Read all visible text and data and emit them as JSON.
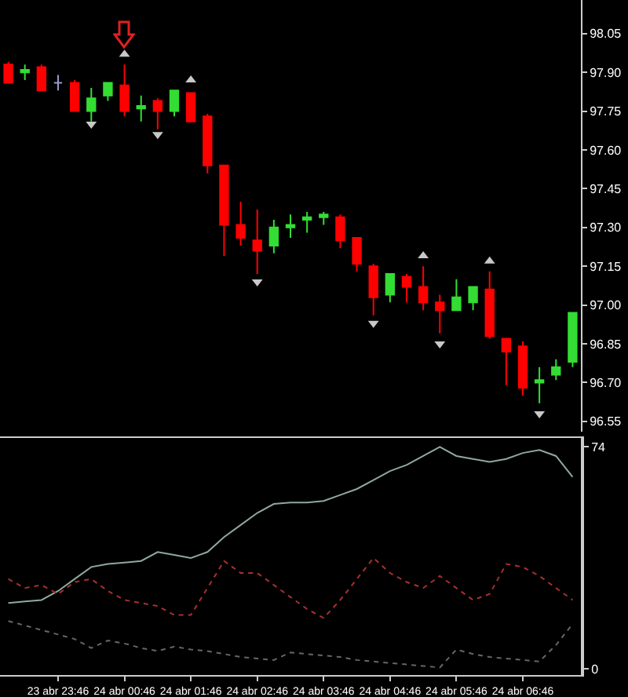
{
  "chart_data": [
    {
      "type": "candlestick",
      "tick_labels": "y",
      "categories": [
        null,
        null,
        null,
        null,
        null,
        null,
        null,
        null,
        null,
        null,
        null,
        null,
        null,
        null,
        null,
        null,
        null,
        null,
        null,
        null,
        null,
        null,
        null,
        null,
        null,
        null,
        null,
        null,
        null,
        null,
        null,
        null,
        null,
        null,
        null
      ],
      "ohlc": [
        [
          97.93,
          97.94,
          97.86,
          97.86
        ],
        [
          97.9,
          97.93,
          97.87,
          97.91
        ],
        [
          97.92,
          97.93,
          97.83,
          97.83
        ],
        [
          97.86,
          97.89,
          97.83,
          97.86
        ],
        [
          97.86,
          97.87,
          97.75,
          97.75
        ],
        [
          97.75,
          97.84,
          97.71,
          97.8
        ],
        [
          97.81,
          97.86,
          97.79,
          97.86
        ],
        [
          97.85,
          97.93,
          97.73,
          97.75
        ],
        [
          97.76,
          97.81,
          97.71,
          97.77
        ],
        [
          97.79,
          97.8,
          97.68,
          97.75
        ],
        [
          97.75,
          97.83,
          97.73,
          97.83
        ],
        [
          97.82,
          97.82,
          97.71,
          97.71
        ],
        [
          97.73,
          97.74,
          97.51,
          97.54
        ],
        [
          97.54,
          97.54,
          97.19,
          97.31
        ],
        [
          97.31,
          97.4,
          97.23,
          97.26
        ],
        [
          97.25,
          97.37,
          97.12,
          97.21
        ],
        [
          97.23,
          97.33,
          97.2,
          97.3
        ],
        [
          97.3,
          97.35,
          97.26,
          97.31
        ],
        [
          97.33,
          97.36,
          97.28,
          97.34
        ],
        [
          97.34,
          97.36,
          97.31,
          97.35
        ],
        [
          97.34,
          97.35,
          97.22,
          97.25
        ],
        [
          97.26,
          97.26,
          97.13,
          97.16
        ],
        [
          97.15,
          97.16,
          96.96,
          97.03
        ],
        [
          97.04,
          97.12,
          97.01,
          97.12
        ],
        [
          97.11,
          97.12,
          97.01,
          97.07
        ],
        [
          97.07,
          97.15,
          96.98,
          97.01
        ],
        [
          97.01,
          97.04,
          96.89,
          96.98
        ],
        [
          96.98,
          97.1,
          96.98,
          97.03
        ],
        [
          97.01,
          97.07,
          96.98,
          97.07
        ],
        [
          97.06,
          97.13,
          96.87,
          96.88
        ],
        [
          96.87,
          96.87,
          96.69,
          96.82
        ],
        [
          96.84,
          96.86,
          96.65,
          96.68
        ],
        [
          96.7,
          96.76,
          96.62,
          96.71
        ],
        [
          96.73,
          96.79,
          96.71,
          96.76
        ],
        [
          96.78,
          96.97,
          96.76,
          96.97
        ]
      ],
      "colors": [
        "#ff0000",
        "#33dd33",
        "#ff0000",
        "#9999cc",
        "#ff0000",
        "#33dd33",
        "#33dd33",
        "#ff0000",
        "#33dd33",
        "#ff0000",
        "#33dd33",
        "#ff0000",
        "#ff0000",
        "#ff0000",
        "#ff0000",
        "#ff0000",
        "#33dd33",
        "#33dd33",
        "#33dd33",
        "#33dd33",
        "#ff0000",
        "#ff0000",
        "#ff0000",
        "#33dd33",
        "#ff0000",
        "#ff0000",
        "#ff0000",
        "#33dd33",
        "#33dd33",
        "#ff0000",
        "#ff0000",
        "#ff0000",
        "#33dd33",
        "#33dd33",
        "#33dd33"
      ],
      "series": [
        {
          "type": "scatter",
          "color": "#c8c8c8",
          "marker": "triangle",
          "values": [
            null,
            null,
            null,
            null,
            null,
            null,
            null,
            97.97,
            null,
            null,
            null,
            97.87,
            null,
            null,
            null,
            null,
            null,
            null,
            null,
            null,
            null,
            null,
            null,
            null,
            null,
            97.19,
            null,
            null,
            null,
            97.17,
            null,
            null,
            null,
            null,
            null
          ]
        },
        {
          "type": "scatter",
          "color": "#c8c8c8",
          "marker": "triangle",
          "values": [
            null,
            null,
            null,
            null,
            null,
            97.7,
            null,
            null,
            null,
            97.66,
            null,
            null,
            null,
            null,
            null,
            97.09,
            null,
            null,
            null,
            null,
            null,
            null,
            96.93,
            null,
            null,
            null,
            96.85,
            null,
            null,
            null,
            null,
            null,
            96.58,
            null,
            null
          ]
        }
      ],
      "ylim": [
        96.51,
        98.18
      ],
      "yticks": [
        {
          "value": 98.05,
          "label": "98.05"
        },
        {
          "value": 97.9,
          "label": "97.90"
        },
        {
          "value": 97.75,
          "label": "97.75"
        },
        {
          "value": 97.6,
          "label": "97.60"
        },
        {
          "value": 97.45,
          "label": "97.45"
        },
        {
          "value": 97.3,
          "label": "97.30"
        },
        {
          "value": 97.15,
          "label": "97.15"
        },
        {
          "value": 97.0,
          "label": "97.00"
        },
        {
          "value": 96.85,
          "label": "96.85"
        },
        {
          "value": 96.7,
          "label": "96.70"
        },
        {
          "value": 96.55,
          "label": "96.55"
        }
      ]
    },
    {
      "type": "line",
      "categories": [
        null,
        null,
        null,
        "23 abr 23:46",
        null,
        null,
        null,
        "24 abr 00:46",
        null,
        null,
        null,
        "24 abr 01:46",
        null,
        null,
        null,
        "24 abr 02:46",
        null,
        null,
        null,
        "24 abr 03:46",
        null,
        null,
        null,
        "24 abr 04:46",
        null,
        null,
        null,
        "24 abr 05:46",
        null,
        null,
        null,
        "24 abr 06:46",
        null,
        null,
        null
      ],
      "series": [
        {
          "color": "#8fa8a0",
          "line_style": "solid",
          "values": [
            22,
            22.5,
            23,
            26,
            30,
            34,
            35,
            35.5,
            36,
            39,
            38,
            37,
            39,
            44,
            48,
            52,
            55,
            55.5,
            55.5,
            56,
            58,
            60,
            63,
            66,
            68,
            71,
            74,
            71,
            70,
            69,
            70,
            72,
            73,
            71,
            64
          ]
        },
        {
          "color": "#a83030",
          "line_style": "dotted",
          "values": [
            30,
            27,
            28,
            25,
            29,
            30,
            26,
            23,
            22,
            21,
            18,
            18,
            27,
            36,
            32,
            32,
            28,
            24,
            20,
            17,
            23,
            30,
            37,
            32,
            29,
            27,
            31,
            27,
            23,
            25,
            35,
            34,
            31,
            27,
            23
          ]
        },
        {
          "color": "#666666",
          "line_style": "dotted",
          "values": [
            16,
            14.5,
            13,
            11.5,
            10,
            7,
            9.5,
            8.5,
            7,
            6,
            7.5,
            6.5,
            6,
            5,
            4,
            3.5,
            3,
            5.5,
            5,
            4.5,
            4,
            3,
            2.5,
            2,
            1.5,
            1,
            0.5,
            6.5,
            5,
            4,
            3.5,
            3,
            2.5,
            8,
            15
          ]
        }
      ],
      "ylim": [
        -2,
        77
      ],
      "yticks": [
        74,
        0
      ]
    }
  ]
}
